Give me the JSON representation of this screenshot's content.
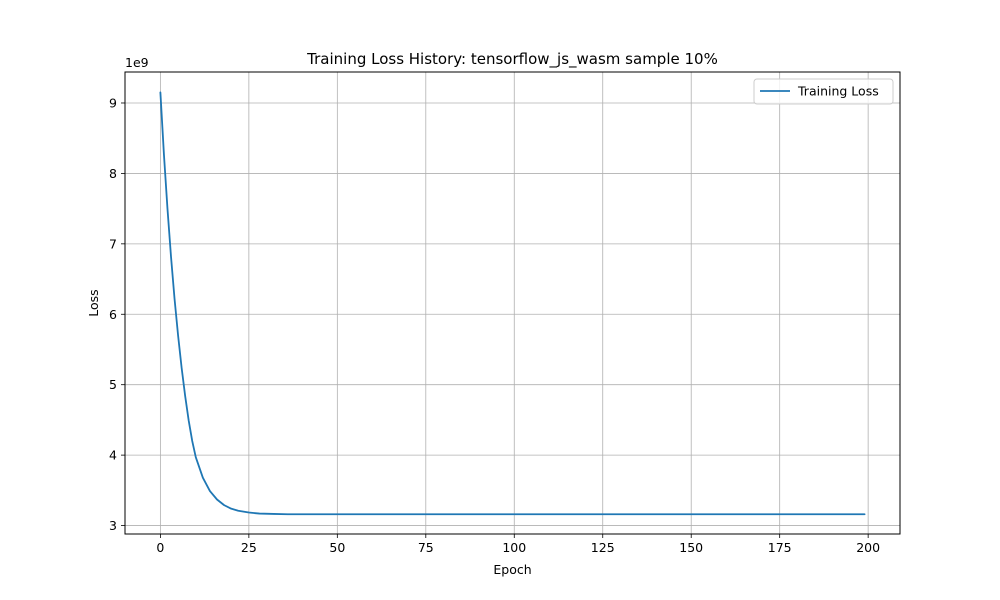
{
  "chart_data": {
    "type": "line",
    "title": "Training Loss History: tensorflow_js_wasm sample 10%",
    "xlabel": "Epoch",
    "ylabel": "Loss",
    "y_offset_label": "1e9",
    "xlim": [
      -10,
      209
    ],
    "ylim": [
      2.88,
      9.44
    ],
    "x_ticks": [
      0,
      25,
      50,
      75,
      100,
      125,
      150,
      175,
      200
    ],
    "x_tick_labels": [
      "0",
      "25",
      "50",
      "75",
      "100",
      "125",
      "150",
      "175",
      "200"
    ],
    "y_ticks": [
      3,
      4,
      5,
      6,
      7,
      8,
      9
    ],
    "y_tick_labels": [
      "3",
      "4",
      "5",
      "6",
      "7",
      "8",
      "9"
    ],
    "grid": true,
    "legend_position": "top-right",
    "series": [
      {
        "name": "Training Loss",
        "color": "#1f77b4",
        "x": [
          0,
          1,
          2,
          3,
          4,
          5,
          6,
          7,
          8,
          9,
          10,
          12,
          14,
          16,
          18,
          20,
          22,
          25,
          28,
          32,
          36,
          40,
          50,
          75,
          100,
          125,
          150,
          175,
          199
        ],
        "y": [
          9.15,
          8.27,
          7.5,
          6.82,
          6.22,
          5.7,
          5.24,
          4.84,
          4.49,
          4.2,
          3.97,
          3.68,
          3.49,
          3.37,
          3.29,
          3.24,
          3.21,
          3.185,
          3.17,
          3.165,
          3.16,
          3.16,
          3.16,
          3.16,
          3.16,
          3.16,
          3.16,
          3.16,
          3.16
        ]
      }
    ]
  }
}
